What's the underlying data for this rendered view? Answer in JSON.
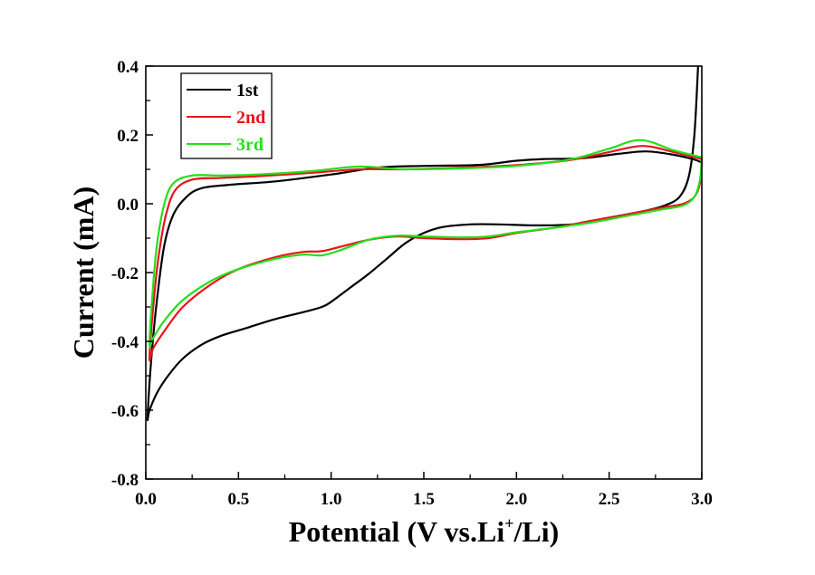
{
  "chart_data": {
    "type": "line",
    "title": "",
    "xlabel": "Potential (V vs.Li+/Li)",
    "xlabel_parts": {
      "main": "Potential (V vs.Li",
      "sup": "+",
      "tail": "/Li)"
    },
    "ylabel": "Current (mA)",
    "xlim": [
      0.0,
      3.0
    ],
    "ylim": [
      -0.8,
      0.4
    ],
    "x_ticks": [
      "0.0",
      "0.5",
      "1.0",
      "1.5",
      "2.0",
      "2.5",
      "3.0"
    ],
    "x_tick_values": [
      0.0,
      0.5,
      1.0,
      1.5,
      2.0,
      2.5,
      3.0
    ],
    "y_ticks": [
      "0.4",
      "0.2",
      "0.0",
      "-0.2",
      "-0.4",
      "-0.6",
      "-0.8"
    ],
    "y_tick_values": [
      0.4,
      0.2,
      0.0,
      -0.2,
      -0.4,
      -0.6,
      -0.8
    ],
    "grid": false,
    "legend_position": "top-left",
    "series": [
      {
        "name": "1st",
        "color": "#000000",
        "points": [
          [
            2.98,
            0.4
          ],
          [
            2.96,
            0.2
          ],
          [
            2.93,
            0.08
          ],
          [
            2.88,
            0.02
          ],
          [
            2.8,
            -0.005
          ],
          [
            2.7,
            -0.02
          ],
          [
            2.5,
            -0.045
          ],
          [
            2.3,
            -0.06
          ],
          [
            2.1,
            -0.063
          ],
          [
            1.9,
            -0.06
          ],
          [
            1.75,
            -0.06
          ],
          [
            1.6,
            -0.068
          ],
          [
            1.5,
            -0.085
          ],
          [
            1.4,
            -0.115
          ],
          [
            1.3,
            -0.16
          ],
          [
            1.2,
            -0.205
          ],
          [
            1.1,
            -0.245
          ],
          [
            1.0,
            -0.285
          ],
          [
            0.95,
            -0.3
          ],
          [
            0.85,
            -0.315
          ],
          [
            0.7,
            -0.335
          ],
          [
            0.55,
            -0.36
          ],
          [
            0.4,
            -0.385
          ],
          [
            0.3,
            -0.41
          ],
          [
            0.2,
            -0.45
          ],
          [
            0.12,
            -0.5
          ],
          [
            0.06,
            -0.55
          ],
          [
            0.02,
            -0.6
          ],
          [
            0.01,
            -0.62
          ],
          [
            0.03,
            -0.45
          ],
          [
            0.06,
            -0.28
          ],
          [
            0.1,
            -0.12
          ],
          [
            0.15,
            -0.03
          ],
          [
            0.22,
            0.02
          ],
          [
            0.3,
            0.045
          ],
          [
            0.45,
            0.055
          ],
          [
            0.7,
            0.065
          ],
          [
            1.0,
            0.085
          ],
          [
            1.25,
            0.105
          ],
          [
            1.5,
            0.11
          ],
          [
            1.8,
            0.113
          ],
          [
            2.0,
            0.125
          ],
          [
            2.15,
            0.13
          ],
          [
            2.35,
            0.132
          ],
          [
            2.55,
            0.145
          ],
          [
            2.7,
            0.152
          ],
          [
            2.85,
            0.142
          ],
          [
            2.95,
            0.13
          ],
          [
            3.0,
            0.12
          ]
        ]
      },
      {
        "name": "2nd",
        "color": "#e8141b",
        "points": [
          [
            3.0,
            0.13
          ],
          [
            2.99,
            0.06
          ],
          [
            2.96,
            0.02
          ],
          [
            2.9,
            0.0
          ],
          [
            2.8,
            -0.01
          ],
          [
            2.6,
            -0.03
          ],
          [
            2.4,
            -0.05
          ],
          [
            2.2,
            -0.07
          ],
          [
            2.0,
            -0.085
          ],
          [
            1.85,
            -0.1
          ],
          [
            1.7,
            -0.103
          ],
          [
            1.5,
            -0.1
          ],
          [
            1.35,
            -0.095
          ],
          [
            1.2,
            -0.105
          ],
          [
            1.05,
            -0.125
          ],
          [
            0.95,
            -0.138
          ],
          [
            0.85,
            -0.14
          ],
          [
            0.7,
            -0.155
          ],
          [
            0.5,
            -0.19
          ],
          [
            0.35,
            -0.235
          ],
          [
            0.2,
            -0.3
          ],
          [
            0.1,
            -0.37
          ],
          [
            0.04,
            -0.42
          ],
          [
            0.02,
            -0.45
          ],
          [
            0.04,
            -0.3
          ],
          [
            0.07,
            -0.15
          ],
          [
            0.11,
            -0.03
          ],
          [
            0.16,
            0.04
          ],
          [
            0.25,
            0.07
          ],
          [
            0.4,
            0.075
          ],
          [
            0.6,
            0.08
          ],
          [
            0.9,
            0.09
          ],
          [
            1.15,
            0.1
          ],
          [
            1.4,
            0.1
          ],
          [
            1.7,
            0.105
          ],
          [
            2.0,
            0.112
          ],
          [
            2.3,
            0.128
          ],
          [
            2.5,
            0.15
          ],
          [
            2.68,
            0.168
          ],
          [
            2.85,
            0.15
          ],
          [
            3.0,
            0.13
          ]
        ]
      },
      {
        "name": "3rd",
        "color": "#22e01a",
        "points": [
          [
            3.0,
            0.135
          ],
          [
            2.99,
            0.07
          ],
          [
            2.96,
            0.02
          ],
          [
            2.9,
            -0.005
          ],
          [
            2.8,
            -0.015
          ],
          [
            2.6,
            -0.035
          ],
          [
            2.4,
            -0.055
          ],
          [
            2.2,
            -0.07
          ],
          [
            2.0,
            -0.083
          ],
          [
            1.85,
            -0.095
          ],
          [
            1.7,
            -0.098
          ],
          [
            1.5,
            -0.095
          ],
          [
            1.35,
            -0.093
          ],
          [
            1.2,
            -0.105
          ],
          [
            1.05,
            -0.135
          ],
          [
            0.95,
            -0.15
          ],
          [
            0.85,
            -0.148
          ],
          [
            0.7,
            -0.16
          ],
          [
            0.5,
            -0.19
          ],
          [
            0.35,
            -0.225
          ],
          [
            0.2,
            -0.28
          ],
          [
            0.1,
            -0.34
          ],
          [
            0.04,
            -0.39
          ],
          [
            0.02,
            -0.41
          ],
          [
            0.035,
            -0.27
          ],
          [
            0.06,
            -0.12
          ],
          [
            0.1,
            0.0
          ],
          [
            0.15,
            0.06
          ],
          [
            0.25,
            0.082
          ],
          [
            0.4,
            0.082
          ],
          [
            0.6,
            0.085
          ],
          [
            0.9,
            0.095
          ],
          [
            1.15,
            0.108
          ],
          [
            1.4,
            0.1
          ],
          [
            1.7,
            0.103
          ],
          [
            2.0,
            0.11
          ],
          [
            2.3,
            0.13
          ],
          [
            2.5,
            0.16
          ],
          [
            2.67,
            0.185
          ],
          [
            2.85,
            0.155
          ],
          [
            3.0,
            0.135
          ]
        ]
      }
    ]
  }
}
